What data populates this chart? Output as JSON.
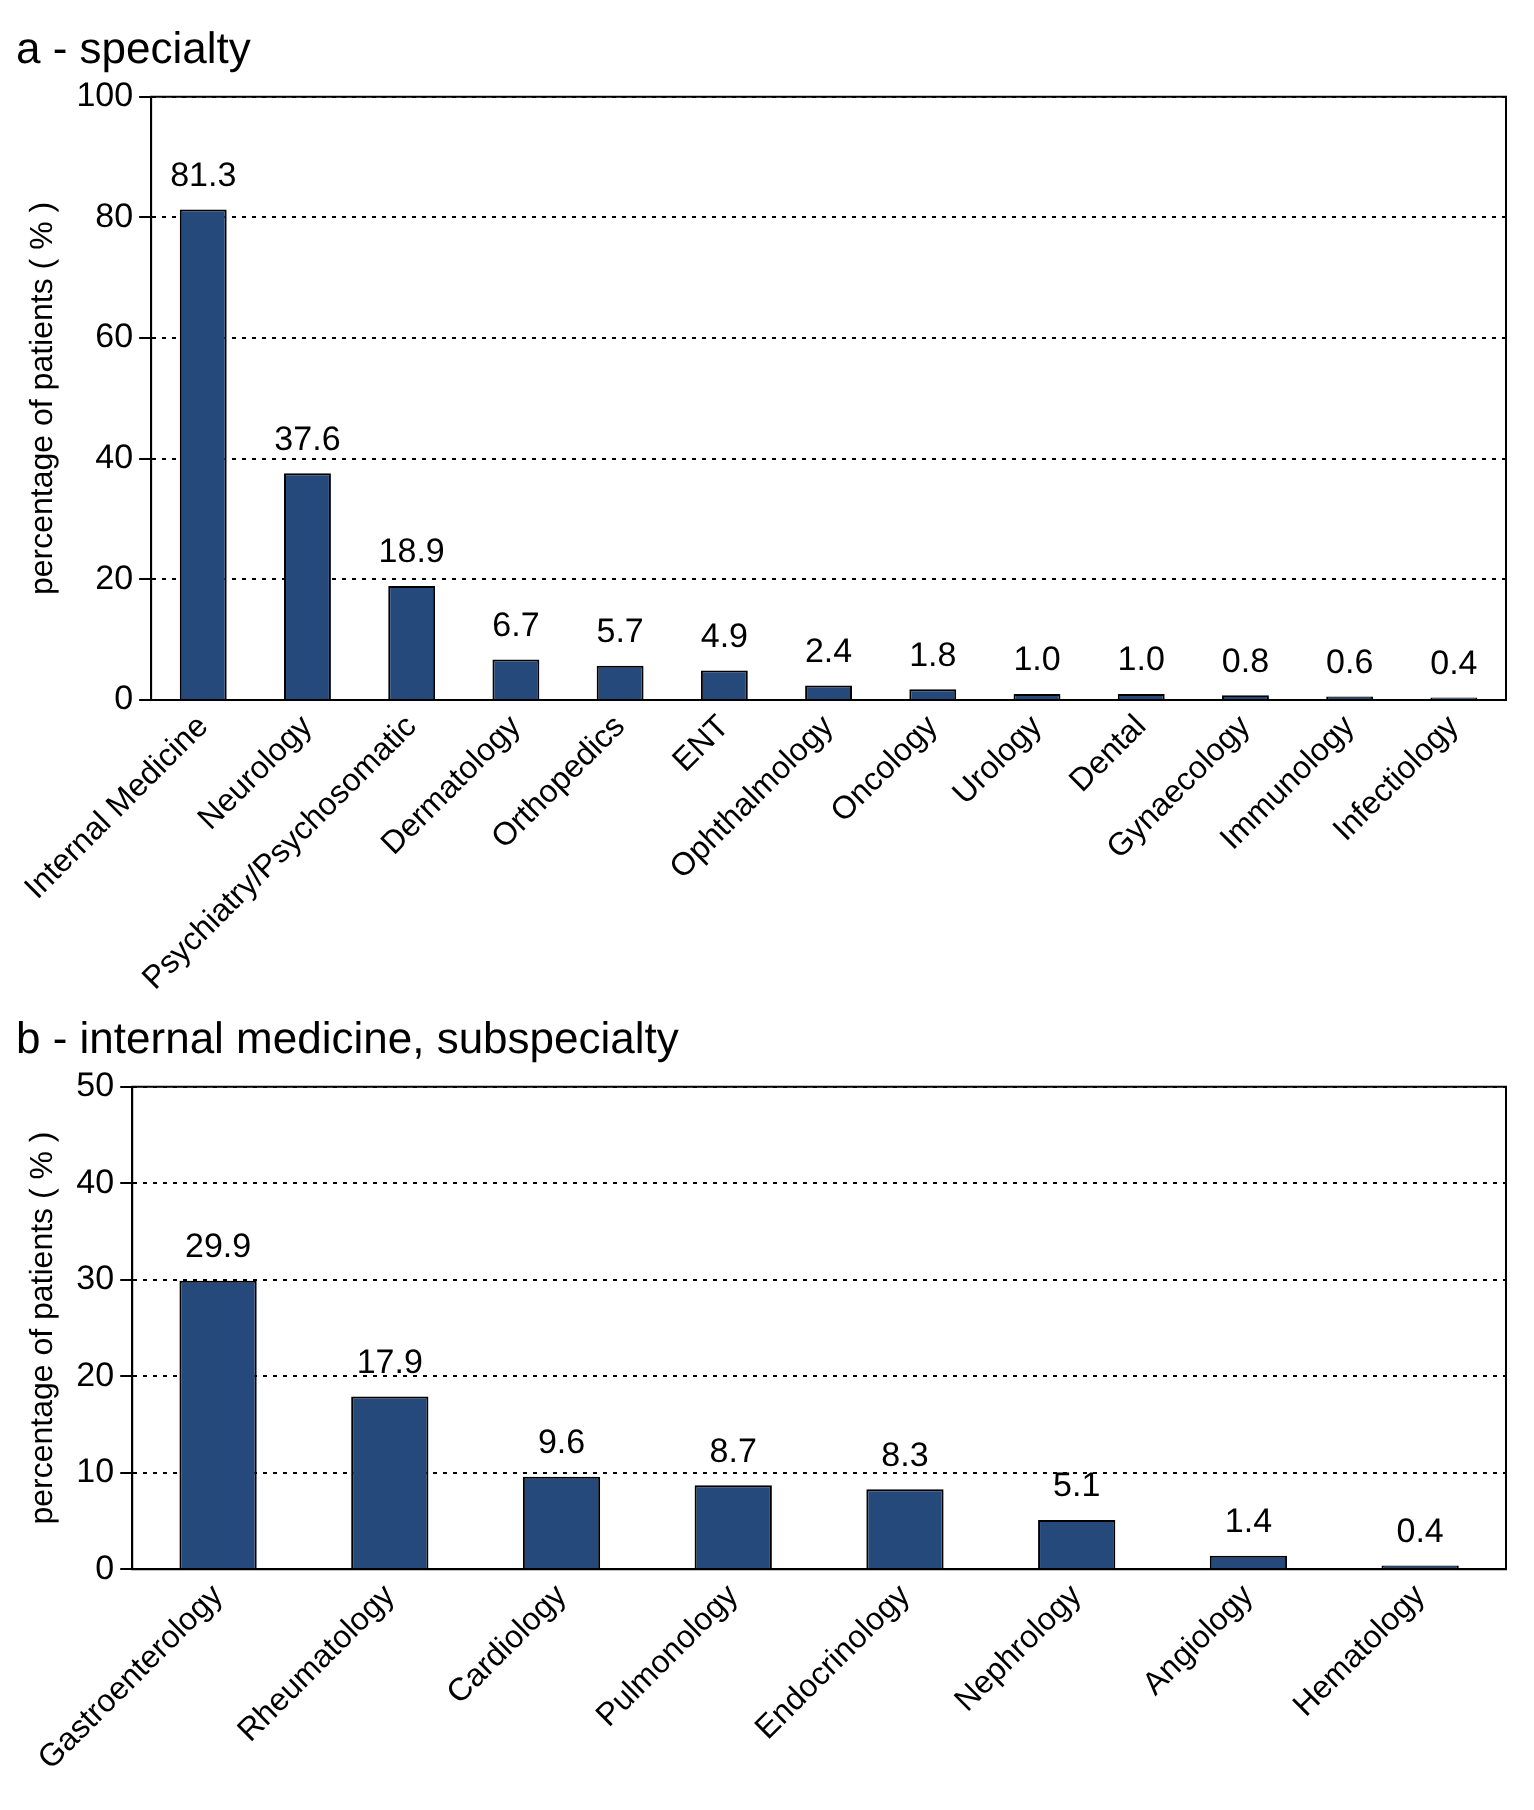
{
  "chart_data": [
    {
      "type": "bar",
      "title": "a - specialty",
      "ylabel": "percentage of patients ( % )",
      "categories": [
        "Internal Medicine",
        "Neurology",
        "Psychiatry/Psychosomatic",
        "Dermatology",
        "Orthopedics",
        "ENT",
        "Ophthalmology",
        "Oncology",
        "Urology",
        "Dental",
        "Gynaecology",
        "Immunology",
        "Infectiology"
      ],
      "values": [
        81.3,
        37.6,
        18.9,
        6.7,
        5.7,
        4.9,
        2.4,
        1.8,
        1.0,
        1.0,
        0.8,
        0.6,
        0.4
      ],
      "value_labels": [
        "81.3",
        "37.6",
        "18.9",
        "6.7",
        "5.7",
        "4.9",
        "2.4",
        "1.8",
        "1.0",
        "1.0",
        "0.8",
        "0.6",
        "0.4"
      ],
      "color": "#25497b",
      "ylim": [
        0,
        100
      ],
      "yticks": [
        0,
        20,
        40,
        60,
        80,
        100
      ],
      "grid": "y",
      "legend": false
    },
    {
      "type": "bar",
      "title": "b - internal medicine, subspecialty",
      "ylabel": "percentage of patients ( % )",
      "categories": [
        "Gastroenterology",
        "Rheumatology",
        "Cardiology",
        "Pulmonology",
        "Endocrinology",
        "Nephrology",
        "Angiology",
        "Hematology"
      ],
      "values": [
        29.9,
        17.9,
        9.6,
        8.7,
        8.3,
        5.1,
        1.4,
        0.4
      ],
      "value_labels": [
        "29.9",
        "17.9",
        "9.6",
        "8.7",
        "8.3",
        "5.1",
        "1.4",
        "0.4"
      ],
      "color": "#25497b",
      "ylim": [
        0,
        50
      ],
      "yticks": [
        0,
        10,
        20,
        30,
        40,
        50
      ],
      "grid": "y",
      "legend": false
    }
  ]
}
